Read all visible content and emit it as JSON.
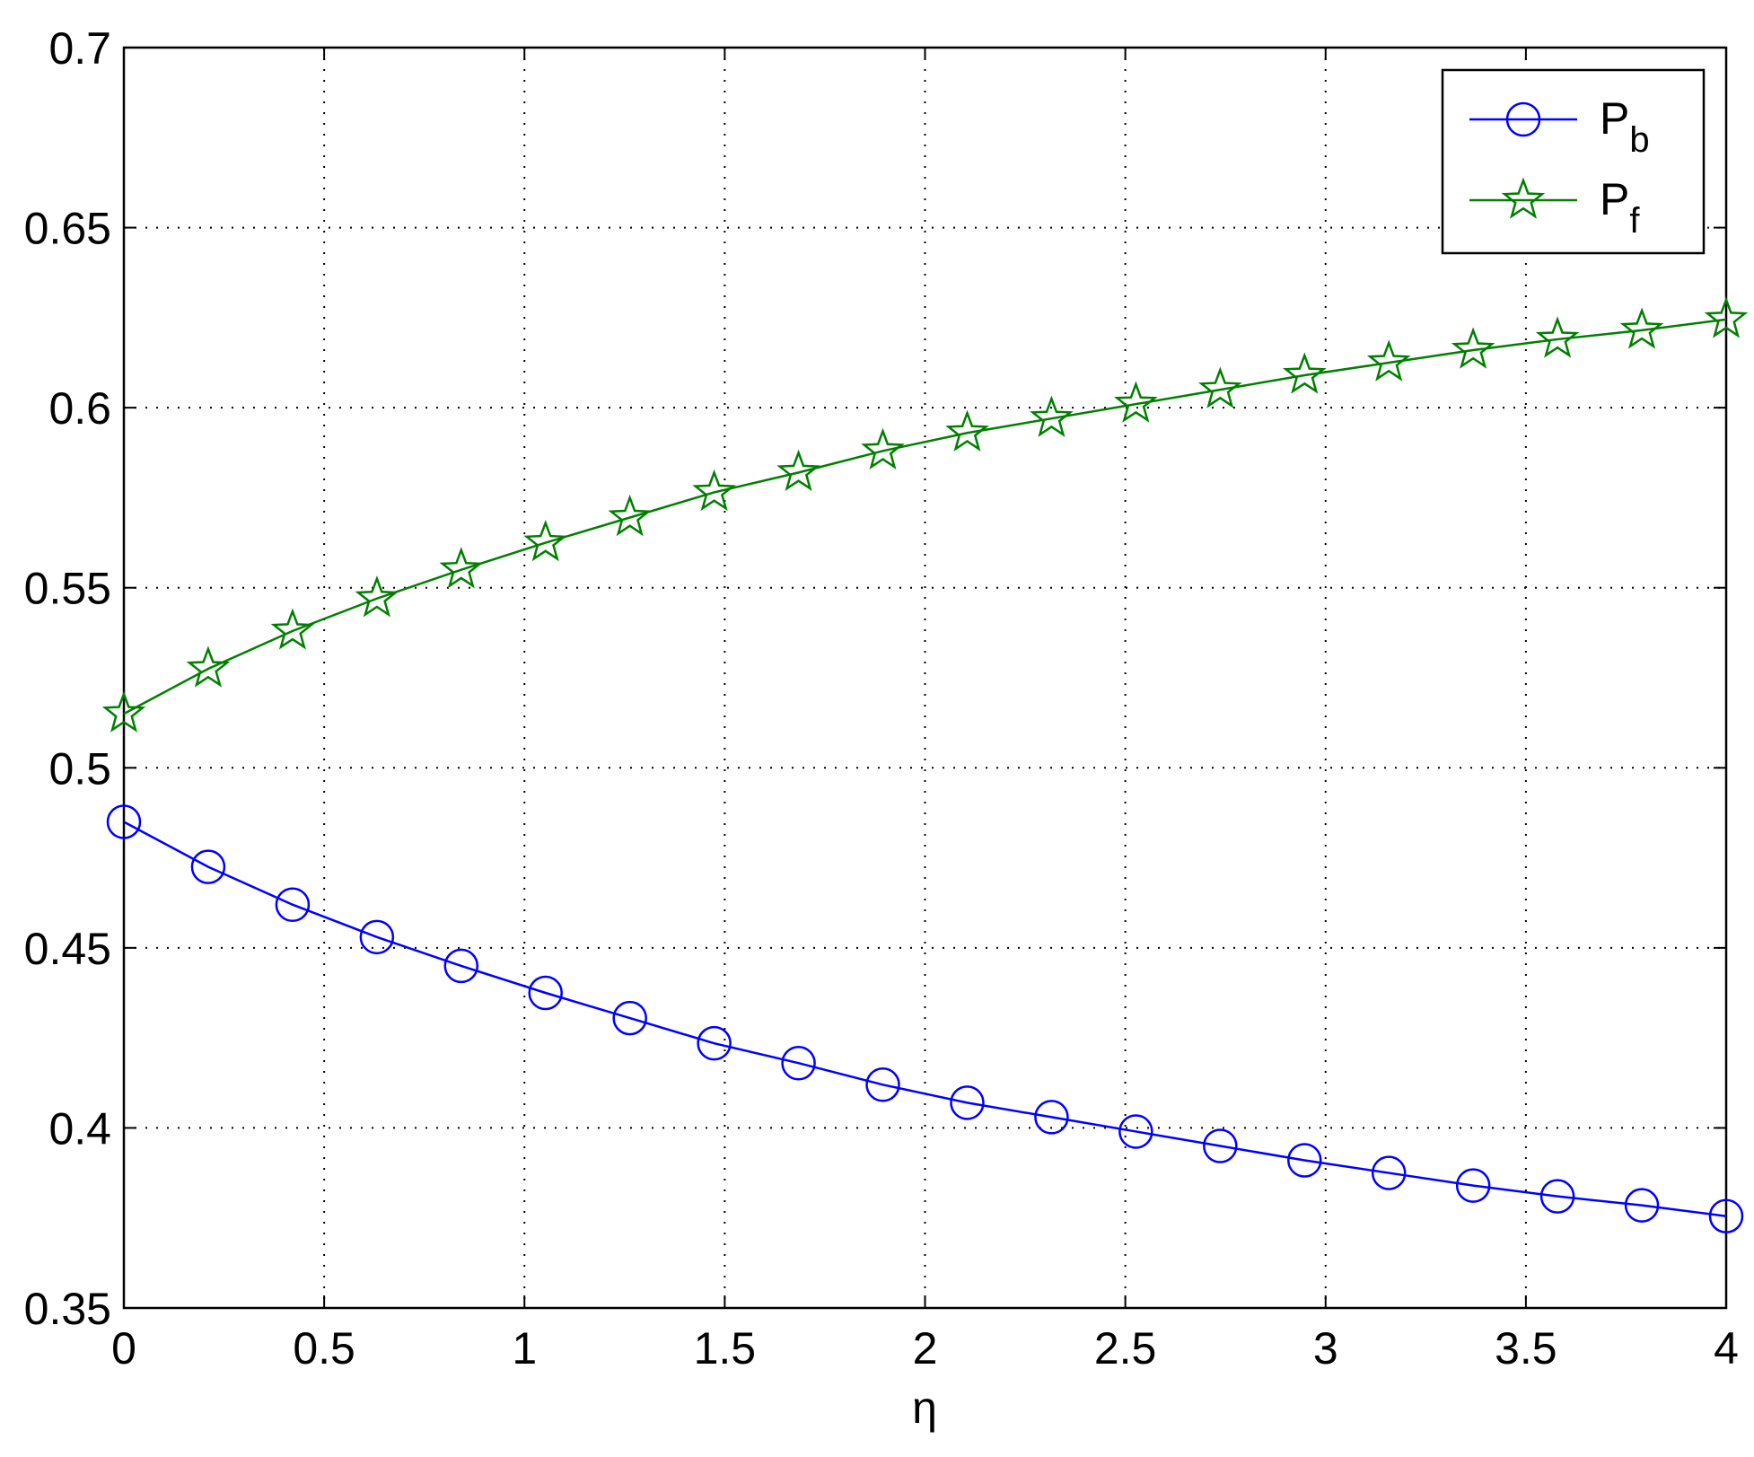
{
  "chart_data": {
    "type": "line",
    "xlabel": "η",
    "x": [
      0,
      0.2105,
      0.4211,
      0.6316,
      0.8421,
      1.0526,
      1.2632,
      1.4737,
      1.6842,
      1.8947,
      2.1053,
      2.3158,
      2.5263,
      2.7368,
      2.9474,
      3.1579,
      3.3684,
      3.5789,
      3.7895,
      4
    ],
    "series": [
      {
        "name": "Pb",
        "color": "#0000ff",
        "marker": "circle",
        "values": [
          0.485,
          0.4725,
          0.462,
          0.453,
          0.445,
          0.4375,
          0.4305,
          0.4235,
          0.418,
          0.412,
          0.407,
          0.403,
          0.399,
          0.395,
          0.391,
          0.3875,
          0.384,
          0.381,
          0.3785,
          0.3755
        ]
      },
      {
        "name": "Pf",
        "color": "#007f00",
        "marker": "star",
        "values": [
          0.515,
          0.5275,
          0.538,
          0.547,
          0.555,
          0.5625,
          0.5695,
          0.5765,
          0.582,
          0.588,
          0.593,
          0.597,
          0.601,
          0.605,
          0.609,
          0.6125,
          0.616,
          0.619,
          0.6215,
          0.6245
        ]
      }
    ],
    "xlim": [
      0,
      4
    ],
    "xticks": [
      0,
      0.5,
      1,
      1.5,
      2,
      2.5,
      3,
      3.5,
      4
    ],
    "ylim": [
      0.35,
      0.7
    ],
    "yticks": [
      0.35,
      0.4,
      0.45,
      0.5,
      0.55,
      0.6,
      0.65,
      0.7
    ],
    "grid": true,
    "legend": "top-right"
  }
}
